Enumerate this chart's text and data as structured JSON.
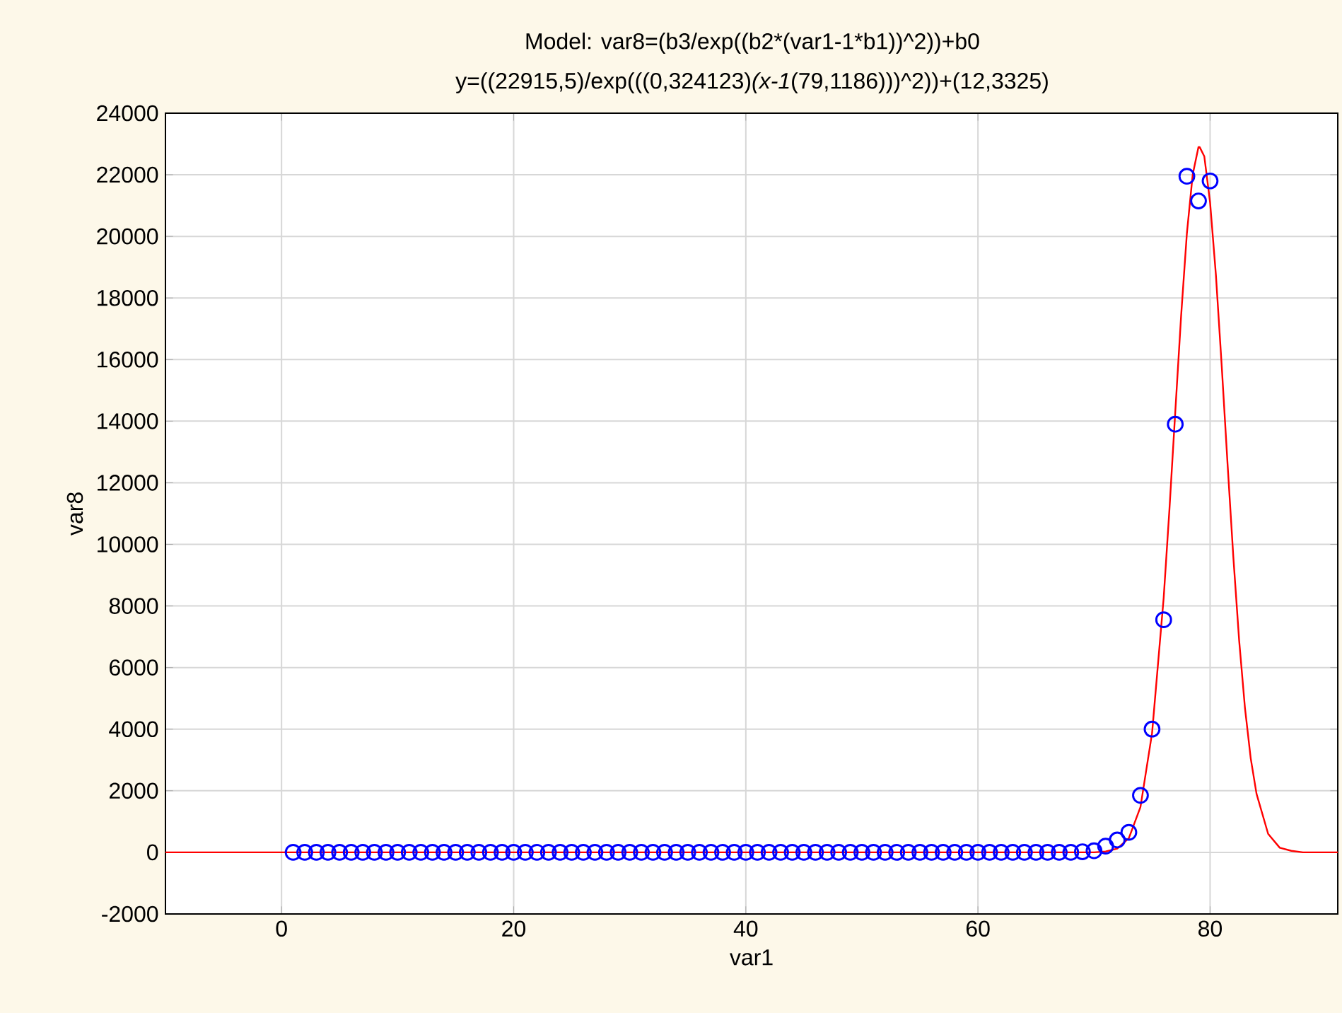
{
  "chart_data": {
    "type": "scatter",
    "title": "Model: var8=(b3/exp((b2*(var1-1*b1))^2))+b0",
    "subtitle": "y=((22915,5)/exp(((0,324123)*(x-1*(79,1186)))^2))+(12,3325)",
    "xlabel": "var1",
    "ylabel": "var8",
    "xlim": [
      -10,
      91
    ],
    "ylim": [
      -2000,
      24000
    ],
    "xticks": [
      0,
      20,
      40,
      60,
      80
    ],
    "yticks": [
      -2000,
      0,
      2000,
      4000,
      6000,
      8000,
      10000,
      12000,
      14000,
      16000,
      18000,
      20000,
      22000,
      24000
    ],
    "grid": true,
    "marker": "circle",
    "series": [
      {
        "type": "scatter",
        "color": "#0000ff",
        "x": [
          1,
          2,
          3,
          4,
          5,
          6,
          7,
          8,
          9,
          10,
          11,
          12,
          13,
          14,
          15,
          16,
          17,
          18,
          19,
          20,
          21,
          22,
          23,
          24,
          25,
          26,
          27,
          28,
          29,
          30,
          31,
          32,
          33,
          34,
          35,
          36,
          37,
          38,
          39,
          40,
          41,
          42,
          43,
          44,
          45,
          46,
          47,
          48,
          49,
          50,
          51,
          52,
          53,
          54,
          55,
          56,
          57,
          58,
          59,
          60,
          61,
          62,
          63,
          64,
          65,
          66,
          67,
          68,
          69,
          70,
          71,
          72,
          73,
          74,
          75,
          76,
          77,
          78,
          79,
          80
        ],
        "values": [
          0,
          0,
          0,
          0,
          0,
          0,
          0,
          0,
          0,
          0,
          0,
          0,
          0,
          0,
          0,
          0,
          0,
          0,
          0,
          0,
          0,
          0,
          0,
          0,
          0,
          0,
          0,
          0,
          0,
          0,
          0,
          0,
          0,
          0,
          0,
          0,
          0,
          0,
          0,
          0,
          0,
          0,
          0,
          0,
          0,
          0,
          0,
          0,
          0,
          0,
          0,
          0,
          0,
          0,
          0,
          0,
          0,
          0,
          0,
          0,
          0,
          0,
          0,
          0,
          0,
          0,
          0,
          0,
          20,
          50,
          200,
          400,
          650,
          1850,
          4000,
          7550,
          13900,
          21950,
          21150,
          21800
        ]
      },
      {
        "type": "line",
        "color": "#ff0000",
        "marker": "none",
        "x": [
          -10,
          0,
          20,
          40,
          60,
          66,
          68,
          70,
          71,
          72,
          73,
          74,
          75,
          76,
          76.5,
          77,
          77.5,
          78,
          78.5,
          79,
          79.1,
          79.5,
          80,
          80.5,
          81,
          81.5,
          82,
          82.5,
          83,
          83.5,
          84,
          85,
          86,
          87,
          88,
          90,
          91
        ],
        "values": [
          0,
          0,
          0,
          0,
          0,
          0,
          0,
          0,
          30,
          120,
          460,
          1470,
          3870,
          8260,
          11150,
          14300,
          17400,
          20100,
          22000,
          22900,
          22900,
          22600,
          21100,
          18750,
          15800,
          12640,
          9600,
          6890,
          4700,
          3050,
          1900,
          600,
          150,
          50,
          0,
          0,
          0
        ]
      }
    ]
  }
}
